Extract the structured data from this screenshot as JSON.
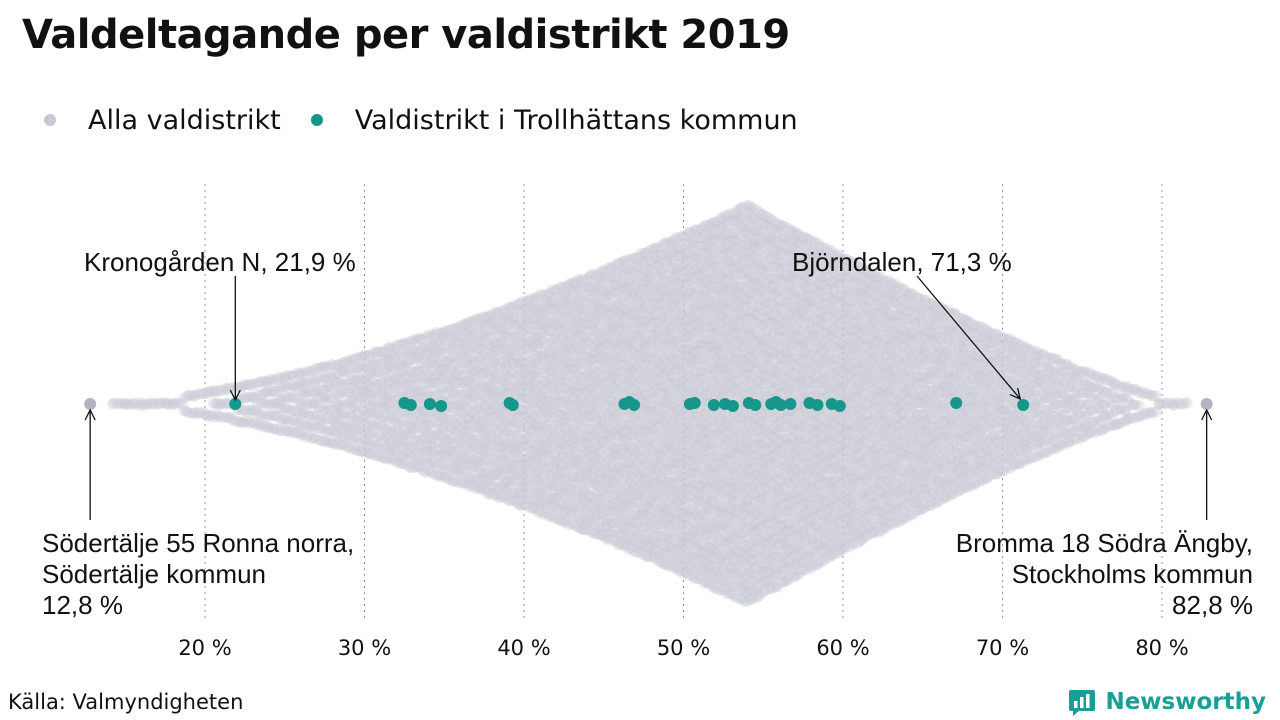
{
  "title": "Valdeltagande per valdistrikt 2019",
  "legend": {
    "all_label": "Alla valdistrikt",
    "trollhattan_label": "Valdistrikt i Trollhättans kommun"
  },
  "colors": {
    "all": "#c9c8d4",
    "all_endpoint": "#b4b3c2",
    "trollhattan": "#17968b",
    "grid": "#9a9a9a",
    "brand": "#1a9e95"
  },
  "annotations": {
    "kronogarden": "Kronogården N, 21,9 %",
    "bjorndalen": "Björndalen, 71,3 %",
    "sodertalje": [
      "Södertälje 55 Ronna norra,",
      "Södertälje kommun",
      "12,8 %"
    ],
    "bromma": [
      "Bromma 18 Södra Ängby,",
      "Stockholms kommun",
      "82,8 %"
    ]
  },
  "chart_data": {
    "type": "scatter",
    "subtype": "beeswarm",
    "title": "Valdeltagande per valdistrikt 2019",
    "xlabel": "",
    "ylabel": "",
    "xlim": [
      12,
      84
    ],
    "xticks": [
      20,
      30,
      40,
      50,
      60,
      70,
      80
    ],
    "xtick_labels": [
      "20 %",
      "30 %",
      "40 %",
      "50 %",
      "60 %",
      "70 %",
      "80 %"
    ],
    "grid": "vertical",
    "legend_position": "top-left",
    "all_districts": {
      "min": 12.8,
      "max": 82.8,
      "distribution_peak": 54
    },
    "series": [
      {
        "name": "Valdistrikt i Trollhättans kommun",
        "values": [
          21.9,
          32.5,
          32.9,
          34.1,
          34.8,
          39.1,
          39.3,
          46.3,
          46.6,
          46.9,
          50.4,
          50.7,
          51.9,
          52.6,
          53.1,
          54.1,
          54.5,
          55.5,
          55.8,
          56.1,
          56.7,
          57.9,
          58.4,
          59.3,
          59.8,
          67.1,
          71.3
        ]
      }
    ],
    "labeled_points": [
      {
        "label": "Södertälje 55 Ronna norra, Södertälje kommun",
        "value": 12.8
      },
      {
        "label": "Kronogården N",
        "value": 21.9
      },
      {
        "label": "Björndalen",
        "value": 71.3
      },
      {
        "label": "Bromma 18 Södra Ängby, Stockholms kommun",
        "value": 82.8
      }
    ]
  },
  "source": "Källa: Valmyndigheten",
  "brand": {
    "name": "Newsworthy",
    "icon": "bar-chart-logo-icon"
  }
}
